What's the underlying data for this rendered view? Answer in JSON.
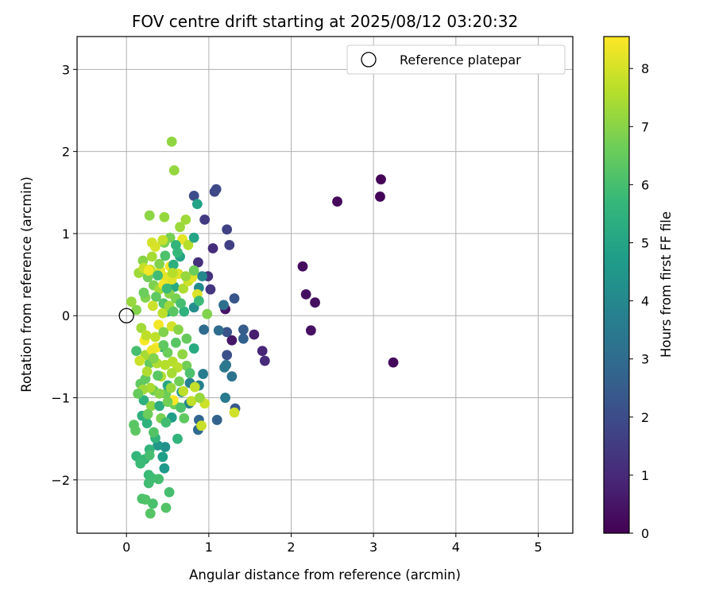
{
  "chart_data": {
    "type": "scatter",
    "title": "FOV centre drift starting at 2025/08/12 03:20:32",
    "xlabel": "Angular distance from reference (arcmin)",
    "ylabel": "Rotation from reference (arcmin)",
    "xlim": [
      -0.6,
      5.42
    ],
    "ylim": [
      -2.65,
      3.4
    ],
    "xticks": [
      0,
      1,
      2,
      3,
      4,
      5
    ],
    "yticks": [
      -2,
      -1,
      0,
      1,
      2,
      3
    ],
    "grid": true,
    "legend": {
      "placement": "top-right",
      "entries": [
        "Reference platepar"
      ]
    },
    "reference_point": {
      "x": 0,
      "y": 0
    },
    "colorbar": {
      "label": "Hours from first FF file",
      "colormap": "viridis",
      "range": [
        0,
        8.55
      ],
      "ticks": [
        0,
        1,
        2,
        3,
        4,
        5,
        6,
        7,
        8
      ]
    },
    "colormap_stops": [
      "#440154",
      "#482878",
      "#3e4989",
      "#31688e",
      "#26828e",
      "#1f9e89",
      "#35b779",
      "#6ece58",
      "#b5de2b",
      "#fde725"
    ],
    "series": [
      {
        "points": [
          [
            3.09,
            1.66,
            0.05
          ],
          [
            3.08,
            1.45,
            0.1
          ],
          [
            2.56,
            1.39,
            0.15
          ],
          [
            3.24,
            -0.57,
            0.2
          ],
          [
            2.14,
            0.6,
            0.25
          ],
          [
            2.18,
            0.26,
            0.3
          ],
          [
            2.29,
            0.16,
            0.35
          ],
          [
            2.24,
            -0.18,
            0.4
          ],
          [
            1.2,
            0.08,
            0.45
          ],
          [
            1.28,
            -0.3,
            0.5
          ],
          [
            1.55,
            -0.23,
            0.7
          ],
          [
            1.65,
            -0.43,
            0.9
          ],
          [
            1.68,
            -0.55,
            1.05
          ],
          [
            1.05,
            0.82,
            1.1
          ],
          [
            0.87,
            0.65,
            1.2
          ],
          [
            0.99,
            0.48,
            1.3
          ],
          [
            1.02,
            0.32,
            1.35
          ],
          [
            0.95,
            1.17,
            1.5
          ],
          [
            1.25,
            0.86,
            1.6
          ],
          [
            1.22,
            1.05,
            1.7
          ],
          [
            1.07,
            1.51,
            1.8
          ],
          [
            1.09,
            1.54,
            1.9
          ],
          [
            0.82,
            1.46,
            2.0
          ],
          [
            1.22,
            -0.48,
            2.1
          ],
          [
            1.22,
            -0.2,
            2.2
          ],
          [
            1.31,
            0.21,
            2.3
          ],
          [
            1.32,
            -1.13,
            2.4
          ],
          [
            1.42,
            -0.17,
            2.5
          ],
          [
            1.42,
            -0.28,
            2.6
          ],
          [
            1.1,
            -1.27,
            2.7
          ],
          [
            0.88,
            -1.27,
            2.8
          ],
          [
            0.87,
            -1.39,
            2.9
          ],
          [
            0.94,
            -0.17,
            3.0
          ],
          [
            1.12,
            -0.18,
            3.05
          ],
          [
            1.18,
            0.13,
            3.1
          ],
          [
            1.28,
            -0.74,
            3.2
          ],
          [
            1.21,
            -0.6,
            3.3
          ],
          [
            1.19,
            -0.63,
            3.4
          ],
          [
            1.2,
            -1.0,
            3.5
          ],
          [
            0.93,
            -0.71,
            3.6
          ],
          [
            0.88,
            -0.85,
            3.7
          ],
          [
            0.77,
            -0.82,
            3.8
          ],
          [
            0.76,
            -1.07,
            3.9
          ],
          [
            0.92,
            0.48,
            4.0
          ],
          [
            0.88,
            0.34,
            4.1
          ],
          [
            0.82,
            0.1,
            4.2
          ],
          [
            0.47,
            -1.6,
            4.3
          ],
          [
            0.67,
            -0.93,
            4.4
          ],
          [
            0.38,
            -1.58,
            4.5
          ],
          [
            0.46,
            -1.86,
            4.6
          ],
          [
            0.55,
            -1.24,
            4.7
          ],
          [
            0.44,
            -1.72,
            4.8
          ],
          [
            0.86,
            1.36,
            4.9
          ],
          [
            0.65,
            0.72,
            5.0
          ],
          [
            0.48,
            0.42,
            5.1
          ],
          [
            0.58,
            0.35,
            5.15
          ],
          [
            0.5,
            0.05,
            5.2
          ],
          [
            0.43,
            -0.38,
            5.3
          ],
          [
            0.21,
            -1.03,
            5.4
          ],
          [
            0.19,
            -1.22,
            5.45
          ],
          [
            0.25,
            -1.31,
            5.5
          ],
          [
            0.35,
            -1.49,
            5.55
          ],
          [
            0.28,
            -1.63,
            5.6
          ],
          [
            0.12,
            -1.71,
            5.65
          ],
          [
            0.17,
            -1.78,
            5.7
          ],
          [
            0.22,
            -1.75,
            5.75
          ],
          [
            0.27,
            -1.94,
            5.8
          ],
          [
            0.31,
            -1.98,
            5.85
          ],
          [
            0.27,
            -2.04,
            5.9
          ],
          [
            0.39,
            -1.99,
            5.95
          ],
          [
            0.52,
            -2.15,
            6.0
          ],
          [
            0.32,
            -2.29,
            6.05
          ],
          [
            0.19,
            -2.23,
            6.1
          ],
          [
            0.23,
            -2.24,
            6.15
          ],
          [
            0.48,
            -2.34,
            6.2
          ],
          [
            0.29,
            -2.41,
            6.25
          ],
          [
            0.09,
            -1.33,
            6.3
          ],
          [
            0.11,
            -1.4,
            6.35
          ],
          [
            0.17,
            -0.83,
            6.4
          ],
          [
            0.23,
            -0.77,
            6.45
          ],
          [
            0.28,
            -0.58,
            6.5
          ],
          [
            0.33,
            -0.91,
            6.55
          ],
          [
            0.48,
            -0.95,
            6.6
          ],
          [
            0.58,
            -1.08,
            6.65
          ],
          [
            0.73,
            -0.61,
            6.7
          ],
          [
            0.53,
            0.95,
            6.75
          ],
          [
            0.46,
            0.89,
            6.8
          ],
          [
            0.33,
            0.37,
            6.85
          ],
          [
            0.23,
            0.22,
            6.9
          ],
          [
            0.12,
            0.07,
            6.95
          ],
          [
            0.2,
            0.67,
            7.0
          ],
          [
            0.28,
            1.22,
            7.05
          ],
          [
            0.55,
            2.12,
            7.1
          ],
          [
            0.58,
            1.77,
            7.15
          ],
          [
            0.46,
            1.2,
            7.2
          ],
          [
            0.65,
            1.08,
            7.25
          ],
          [
            0.72,
            1.17,
            7.3
          ],
          [
            0.18,
            -0.15,
            7.35
          ],
          [
            0.23,
            -0.48,
            7.4
          ],
          [
            0.29,
            -0.88,
            7.45
          ],
          [
            0.37,
            -0.58,
            7.5
          ],
          [
            0.42,
            -0.74,
            7.55
          ],
          [
            0.56,
            -0.56,
            7.6
          ],
          [
            0.62,
            -0.63,
            7.65
          ],
          [
            0.69,
            -0.92,
            7.7
          ],
          [
            0.79,
            -1.04,
            7.75
          ],
          [
            0.83,
            -0.87,
            7.8
          ],
          [
            0.91,
            -1.34,
            7.85
          ],
          [
            0.95,
            -1.07,
            7.9
          ],
          [
            1.31,
            -1.18,
            7.95
          ],
          [
            0.31,
            0.89,
            8.0
          ],
          [
            0.35,
            0.84,
            8.05
          ],
          [
            0.63,
            0.51,
            8.1
          ],
          [
            0.55,
            0.44,
            8.15
          ],
          [
            0.47,
            0.47,
            8.2
          ],
          [
            0.68,
            0.93,
            8.25
          ],
          [
            0.41,
            0.55,
            8.3
          ],
          [
            0.53,
            0.6,
            8.35
          ],
          [
            0.39,
            -0.11,
            8.4
          ],
          [
            0.22,
            -0.3,
            8.45
          ],
          [
            0.36,
            -0.39,
            8.5
          ],
          [
            0.57,
            -1.03,
            8.5
          ],
          [
            0.06,
            0.17,
            7.2
          ],
          [
            0.15,
            0.52,
            7.3
          ],
          [
            0.21,
            0.58,
            7.8
          ],
          [
            0.29,
            0.56,
            7.6
          ],
          [
            0.4,
            0.32,
            7.4
          ],
          [
            0.52,
            0.27,
            7.0
          ],
          [
            0.6,
            0.21,
            6.8
          ],
          [
            0.69,
            0.33,
            7.5
          ],
          [
            0.75,
            0.42,
            7.9
          ],
          [
            0.8,
            0.47,
            8.2
          ],
          [
            0.86,
            0.26,
            8.1
          ],
          [
            0.35,
            -0.26,
            7.7
          ],
          [
            0.45,
            -0.2,
            6.9
          ],
          [
            0.5,
            -0.45,
            6.6
          ],
          [
            0.6,
            -0.33,
            6.3
          ],
          [
            0.68,
            -0.47,
            7.1
          ],
          [
            0.77,
            -0.7,
            6.1
          ],
          [
            0.25,
            -0.68,
            7.5
          ],
          [
            0.16,
            -0.55,
            7.9
          ],
          [
            0.2,
            -0.9,
            7.3
          ],
          [
            0.3,
            -1.1,
            7.1
          ],
          [
            0.42,
            -1.25,
            6.8
          ],
          [
            0.33,
            -1.42,
            6.2
          ],
          [
            0.48,
            -1.3,
            5.9
          ],
          [
            0.62,
            -1.5,
            5.6
          ],
          [
            0.7,
            -1.25,
            6.4
          ],
          [
            0.28,
            -1.7,
            6.0
          ],
          [
            0.17,
            -1.8,
            5.8
          ],
          [
            0.4,
            -1.1,
            5.3
          ],
          [
            0.5,
            -0.85,
            5.1
          ],
          [
            0.4,
            0.63,
            6.9
          ],
          [
            0.31,
            0.72,
            7.4
          ],
          [
            0.26,
            0.47,
            6.7
          ],
          [
            0.36,
            0.23,
            6.4
          ],
          [
            0.45,
            0.15,
            6.2
          ],
          [
            0.57,
            0.62,
            5.4
          ],
          [
            0.62,
            0.77,
            5.7
          ],
          [
            0.47,
            0.73,
            6.1
          ],
          [
            0.75,
            0.86,
            7.6
          ],
          [
            0.82,
            0.55,
            6.6
          ],
          [
            0.88,
            0.18,
            5.8
          ],
          [
            0.7,
            0.05,
            5.5
          ],
          [
            0.44,
            0.03,
            7.7
          ],
          [
            0.55,
            -0.13,
            8.0
          ],
          [
            0.73,
            -0.28,
            6.5
          ],
          [
            0.82,
            -0.4,
            5.2
          ],
          [
            0.55,
            -0.7,
            7.4
          ],
          [
            0.12,
            -0.43,
            6.0
          ],
          [
            0.14,
            -0.95,
            6.5
          ],
          [
            0.38,
            -0.73,
            6.3
          ],
          [
            0.66,
            0.15,
            6.0
          ],
          [
            0.45,
            0.38,
            8.4
          ],
          [
            0.32,
            0.12,
            7.9
          ],
          [
            0.24,
            -0.24,
            7.7
          ],
          [
            0.31,
            -0.42,
            8.3
          ],
          [
            0.44,
            0.92,
            7.8
          ],
          [
            0.6,
            0.86,
            5.6
          ],
          [
            0.82,
            0.95,
            5.0
          ],
          [
            0.89,
            -1.0,
            7.2
          ],
          [
            0.98,
            0.02,
            6.9
          ],
          [
            0.27,
            0.55,
            8.4
          ],
          [
            0.21,
            0.28,
            6.6
          ],
          [
            0.38,
            0.49,
            5.9
          ],
          [
            0.52,
            0.12,
            7.3
          ],
          [
            0.33,
            -0.52,
            6.9
          ],
          [
            0.47,
            -0.6,
            7.6
          ],
          [
            0.54,
            -0.88,
            7.2
          ],
          [
            0.64,
            -0.8,
            6.7
          ],
          [
            0.4,
            -0.95,
            7.0
          ],
          [
            0.26,
            -1.2,
            6.6
          ],
          [
            0.66,
            -1.12,
            6.1
          ],
          [
            0.56,
            0.52,
            7.6
          ],
          [
            0.49,
            0.33,
            5.8
          ],
          [
            0.57,
            0.05,
            6.3
          ],
          [
            0.63,
            -0.17,
            7.0
          ],
          [
            0.45,
            -0.36,
            6.4
          ],
          [
            0.72,
            0.48,
            7.2
          ],
          [
            0.5,
            -1.05,
            6.7
          ]
        ]
      }
    ]
  }
}
